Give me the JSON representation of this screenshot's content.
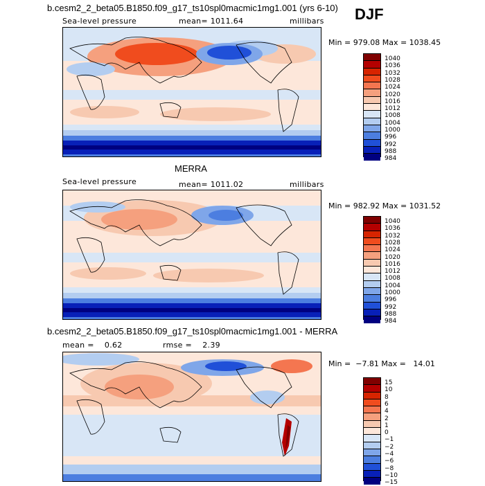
{
  "season": "DJF",
  "panels": [
    {
      "title": "b.cesm2_2_beta05.B1850.f09_g17_ts10spl0macmic1mg1.001 (yrs 6-10)",
      "left": "Sea-level pressure",
      "center": "mean= 1011.64",
      "right": "millibars",
      "minmax": "Min = 979.08 Max = 1038.45",
      "colorbar_labels": [
        "1040",
        "1036",
        "1032",
        "1028",
        "1024",
        "1020",
        "1016",
        "1012",
        "1008",
        "1004",
        "1000",
        "996",
        "992",
        "988",
        "984"
      ]
    },
    {
      "title": "MERRA",
      "left": "Sea-level pressure",
      "center": "mean= 1011.02",
      "right": "millibars",
      "minmax": "Min = 982.92 Max = 1031.52",
      "colorbar_labels": [
        "1040",
        "1036",
        "1032",
        "1028",
        "1024",
        "1020",
        "1016",
        "1012",
        "1008",
        "1004",
        "1000",
        "996",
        "992",
        "988",
        "984"
      ]
    },
    {
      "title": "b.cesm2_2_beta05.B1850.f09_g17_ts10spl0macmic1mg1.001 - MERRA",
      "left": "mean =    0.62",
      "center": "rmse =    2.39",
      "minmax": "Min =  −7.81 Max =   14.01",
      "colorbar_labels": [
        "15",
        "10",
        "8",
        "6",
        "4",
        "2",
        "1",
        "0",
        "−1",
        "−2",
        "−4",
        "−6",
        "−8",
        "−10",
        "−15"
      ]
    }
  ],
  "colors": {
    "scale": [
      "#800000",
      "#b40000",
      "#d72400",
      "#f04c1e",
      "#f47650",
      "#f5a07e",
      "#f7c9b0",
      "#fde7da",
      "#d8e6f6",
      "#b3cdf0",
      "#7fa6e9",
      "#4c7ee0",
      "#2050d8",
      "#0820b8",
      "#000080"
    ]
  }
}
